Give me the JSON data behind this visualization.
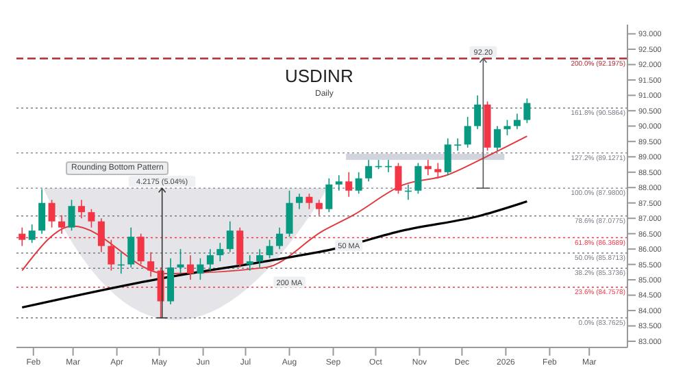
{
  "chart_data": {
    "type": "candlestick",
    "title": "USDINR",
    "subtitle": "Daily",
    "x": [
      "2025-01-24",
      "2025-01-31",
      "2025-02-07",
      "2025-02-14",
      "2025-02-21",
      "2025-02-28",
      "2025-03-07",
      "2025-03-14",
      "2025-03-21",
      "2025-03-28",
      "2025-04-04",
      "2025-04-11",
      "2025-04-18",
      "2025-04-25",
      "2025-05-02",
      "2025-05-09",
      "2025-05-16",
      "2025-05-23",
      "2025-05-30",
      "2025-06-06",
      "2025-06-13",
      "2025-06-20",
      "2025-06-27",
      "2025-07-04",
      "2025-07-11",
      "2025-07-18",
      "2025-07-25",
      "2025-08-01",
      "2025-08-08",
      "2025-08-15",
      "2025-08-22",
      "2025-08-29",
      "2025-09-05",
      "2025-09-12",
      "2025-09-19",
      "2025-09-26",
      "2025-10-03",
      "2025-10-10",
      "2025-10-17",
      "2025-10-24",
      "2025-10-31",
      "2025-11-07",
      "2025-11-14",
      "2025-11-21",
      "2025-11-28",
      "2025-12-05",
      "2025-12-12",
      "2025-12-19",
      "2025-12-26",
      "2026-01-02",
      "2026-01-09",
      "2026-01-16"
    ],
    "ohlc": [
      [
        86.5,
        86.7,
        86.1,
        86.3
      ],
      [
        86.3,
        86.8,
        86.2,
        86.6
      ],
      [
        86.6,
        87.95,
        86.5,
        87.5
      ],
      [
        87.5,
        87.6,
        86.7,
        86.9
      ],
      [
        86.9,
        87.1,
        86.5,
        86.7
      ],
      [
        86.7,
        87.6,
        86.6,
        87.4
      ],
      [
        87.4,
        87.6,
        87.0,
        87.2
      ],
      [
        87.2,
        87.3,
        86.7,
        86.9
      ],
      [
        86.9,
        87.0,
        85.9,
        86.1
      ],
      [
        86.1,
        86.3,
        85.3,
        85.5
      ],
      [
        85.5,
        85.9,
        85.2,
        85.5
      ],
      [
        85.5,
        86.7,
        85.4,
        86.4
      ],
      [
        86.4,
        86.5,
        85.5,
        85.6
      ],
      [
        85.6,
        85.9,
        85.1,
        85.3
      ],
      [
        85.3,
        85.4,
        83.7625,
        84.3
      ],
      [
        84.3,
        85.7,
        84.2,
        85.4
      ],
      [
        85.4,
        86.0,
        85.2,
        85.5
      ],
      [
        85.5,
        85.8,
        85.0,
        85.2
      ],
      [
        85.2,
        85.7,
        85.0,
        85.5
      ],
      [
        85.5,
        86.0,
        85.3,
        85.8
      ],
      [
        85.8,
        86.2,
        85.6,
        86.0
      ],
      [
        86.0,
        86.9,
        85.9,
        86.6
      ],
      [
        86.6,
        86.7,
        85.4,
        85.5
      ],
      [
        85.5,
        85.8,
        85.3,
        85.6
      ],
      [
        85.6,
        86.0,
        85.4,
        85.8
      ],
      [
        85.8,
        86.3,
        85.7,
        86.1
      ],
      [
        86.1,
        86.7,
        86.0,
        86.5
      ],
      [
        86.5,
        87.9,
        86.4,
        87.5
      ],
      [
        87.5,
        87.8,
        87.3,
        87.7
      ],
      [
        87.7,
        87.8,
        87.3,
        87.5
      ],
      [
        87.5,
        87.6,
        87.1,
        87.3
      ],
      [
        87.3,
        88.3,
        87.2,
        88.1
      ],
      [
        88.1,
        88.4,
        87.9,
        88.2
      ],
      [
        88.2,
        88.5,
        87.7,
        87.9
      ],
      [
        87.9,
        88.5,
        87.8,
        88.3
      ],
      [
        88.3,
        88.9,
        88.2,
        88.7
      ],
      [
        88.7,
        88.9,
        88.6,
        88.7
      ],
      [
        88.7,
        88.9,
        88.5,
        88.7
      ],
      [
        88.7,
        88.8,
        87.8,
        87.9
      ],
      [
        87.9,
        88.1,
        87.6,
        87.9
      ],
      [
        87.9,
        88.8,
        87.8,
        88.7
      ],
      [
        88.7,
        88.9,
        88.4,
        88.6
      ],
      [
        88.6,
        88.8,
        88.3,
        88.5
      ],
      [
        88.5,
        89.6,
        88.4,
        89.4
      ],
      [
        89.4,
        89.6,
        89.2,
        89.4
      ],
      [
        89.4,
        90.3,
        89.3,
        90.0
      ],
      [
        90.0,
        91.0,
        89.9,
        90.7
      ],
      [
        90.7,
        90.8,
        89.2,
        89.3
      ],
      [
        89.3,
        90.0,
        89.2,
        89.9
      ],
      [
        89.9,
        90.2,
        89.7,
        90.0
      ],
      [
        90.0,
        90.4,
        89.9,
        90.2
      ],
      [
        90.2,
        90.9,
        90.1,
        90.75
      ]
    ],
    "series": [
      {
        "type": "line",
        "color": "#e0393e",
        "x": [
          "2025-01-24",
          "2025-03-01",
          "2025-05-05",
          "2025-07-15",
          "2025-08-25",
          "2025-09-15",
          "2025-10-20",
          "2025-11-20",
          "2025-12-18",
          "2026-01-16"
        ],
        "values": [
          85.3,
          86.75,
          85.2,
          85.4,
          86.6,
          87.1,
          88.08,
          88.4,
          89.0,
          89.67
        ]
      },
      {
        "type": "line",
        "color": "#000000",
        "x": [
          "2025-01-24",
          "2025-05-03",
          "2025-07-15",
          "2025-09-01",
          "2025-10-20",
          "2025-12-15",
          "2026-01-16"
        ],
        "values": [
          84.1,
          85.05,
          85.6,
          86.0,
          86.6,
          87.1,
          87.55
        ]
      }
    ],
    "xlim": [
      "2025-01-20",
      "2026-03-28"
    ],
    "xticks": [
      {
        "value": "2025-02-01",
        "label": "Feb"
      },
      {
        "value": "2025-03-01",
        "label": "Mar"
      },
      {
        "value": "2025-04-01",
        "label": "Apr"
      },
      {
        "value": "2025-05-01",
        "label": "May"
      },
      {
        "value": "2025-06-01",
        "label": "Jun"
      },
      {
        "value": "2025-07-01",
        "label": "Jul"
      },
      {
        "value": "2025-08-01",
        "label": "Aug"
      },
      {
        "value": "2025-09-01",
        "label": "Sep"
      },
      {
        "value": "2025-10-01",
        "label": "Oct"
      },
      {
        "value": "2025-11-01",
        "label": "Nov"
      },
      {
        "value": "2025-12-01",
        "label": "Dec"
      },
      {
        "value": "2026-01-01",
        "label": "2026"
      },
      {
        "value": "2026-02-01",
        "label": "Feb"
      },
      {
        "value": "2026-03-01",
        "label": "Mar"
      }
    ],
    "ylim": [
      82.8,
      93.3
    ],
    "yticks": [
      {
        "value": 83,
        "label": "83.000"
      },
      {
        "value": 83.5,
        "label": "83.500"
      },
      {
        "value": 84,
        "label": "84.000"
      },
      {
        "value": 84.5,
        "label": "84.500"
      },
      {
        "value": 85,
        "label": "85.000"
      },
      {
        "value": 85.5,
        "label": "85.500"
      },
      {
        "value": 86,
        "label": "86.000"
      },
      {
        "value": 86.5,
        "label": "86.500"
      },
      {
        "value": 87,
        "label": "87.000"
      },
      {
        "value": 87.5,
        "label": "87.500"
      },
      {
        "value": 88,
        "label": "88.000"
      },
      {
        "value": 88.5,
        "label": "88.500"
      },
      {
        "value": 89,
        "label": "89.000"
      },
      {
        "value": 89.5,
        "label": "89.500"
      },
      {
        "value": 90,
        "label": "90.000"
      },
      {
        "value": 90.5,
        "label": "90.500"
      },
      {
        "value": 91,
        "label": "91.000"
      },
      {
        "value": 91.5,
        "label": "91.500"
      },
      {
        "value": 92,
        "label": "92.000"
      },
      {
        "value": 92.5,
        "label": "92.500"
      },
      {
        "value": 93,
        "label": "93.000"
      }
    ],
    "ref_lines": [
      {
        "axis": "y",
        "value": 92.1975,
        "label": "200.0% (92.1975)",
        "color": "#b22833",
        "line_style": "dashed"
      },
      {
        "axis": "y",
        "value": 90.5864,
        "label": "161.8% (90.5864)",
        "color": "#787b86",
        "line_style": "dotted"
      },
      {
        "axis": "y",
        "value": 89.1271,
        "label": "127.2% (89.1271)",
        "color": "#787b86",
        "line_style": "dotted"
      },
      {
        "axis": "y",
        "value": 87.98,
        "label": "100.0% (87.9800)",
        "color": "#787b86",
        "line_style": "dotted"
      },
      {
        "axis": "y",
        "value": 87.0775,
        "label": "78.6% (87.0775)",
        "color": "#787b86",
        "line_style": "dotted"
      },
      {
        "axis": "y",
        "value": 86.3689,
        "label": "61.8% (86.3689)",
        "color": "#f23645",
        "line_style": "dotted"
      },
      {
        "axis": "y",
        "value": 85.8713,
        "label": "50.0% (85.8713)",
        "color": "#787b86",
        "line_style": "dotted"
      },
      {
        "axis": "y",
        "value": 85.3736,
        "label": "38.2% (85.3736)",
        "color": "#787b86",
        "line_style": "dotted"
      },
      {
        "axis": "y",
        "value": 84.7578,
        "label": "23.6% (84.7578)",
        "color": "#f23645",
        "line_style": "dotted"
      },
      {
        "axis": "y",
        "value": 83.7625,
        "label": "0.0% (83.7625)",
        "color": "#787b86",
        "line_style": "dotted"
      }
    ],
    "annotations": [
      "Rounding Bottom Pattern",
      {
        "text": "4.2175 (5.04%)",
        "x": "2025-05-03",
        "y": 87.98
      },
      {
        "text": "92.20",
        "x": "2025-12-16",
        "y": 92.1975
      },
      {
        "text": "50 MA",
        "x": "2025-09-12",
        "y": 85.9
      },
      {
        "text": "200 MA",
        "x": "2025-08-01",
        "y": 84.7
      }
    ]
  }
}
